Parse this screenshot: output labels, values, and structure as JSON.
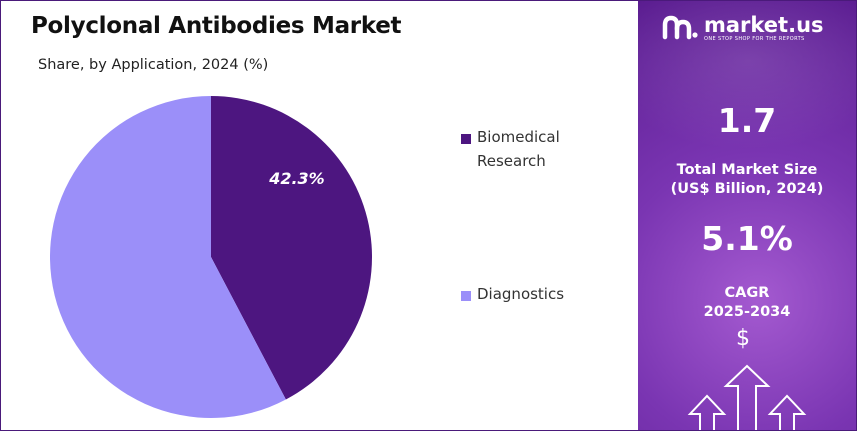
{
  "chart_data": {
    "type": "pie",
    "title": "Polyclonal Antibodies Market",
    "subtitle": "Share, by Application, 2024 (%)",
    "slices": [
      {
        "label": "Biomedical Research",
        "value": 42.3,
        "data_label": "42.3%",
        "color": "#4d1680"
      },
      {
        "label": "Diagnostics",
        "value": 57.7,
        "data_label": "",
        "color": "#9b8ff9"
      }
    ],
    "legend_placement": "right"
  },
  "brand": {
    "name": "market.us",
    "tagline": "ONE STOP SHOP FOR THE REPORTS"
  },
  "sidebar": {
    "market_size_value": "1.7",
    "market_size_label_line1": "Total Market Size",
    "market_size_label_line2": "(US$ Billion, 2024)",
    "cagr_value": "5.1%",
    "cagr_label_line1": "CAGR",
    "cagr_label_line2": "2025-2034",
    "dollar_symbol": "$"
  },
  "colors": {
    "panel": "#7a35b2",
    "dark_slice": "#4d1680",
    "light_slice": "#9b8ff9"
  }
}
